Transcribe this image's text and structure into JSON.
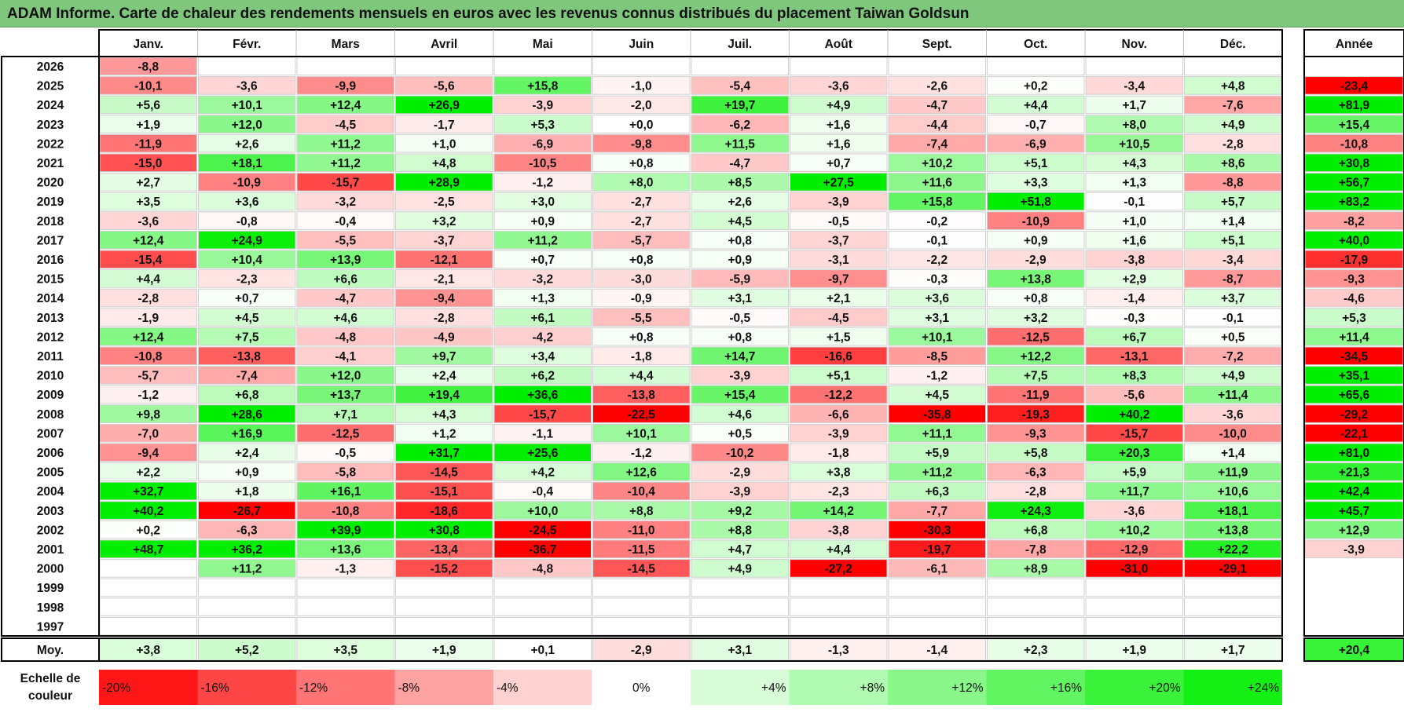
{
  "title": "ADAM Informe. Carte de chaleur des rendements mensuels en euros avec les revenus connus distribués du placement Taiwan Goldsun",
  "chart_data": {
    "type": "heatmap",
    "title": "ADAM Informe. Carte de chaleur des rendements mensuels en euros avec les revenus connus distribués du placement Taiwan Goldsun",
    "columns": [
      "Janv.",
      "Févr.",
      "Mars",
      "Avril",
      "Mai",
      "Juin",
      "Juil.",
      "Août",
      "Sept.",
      "Oct.",
      "Nov.",
      "Déc."
    ],
    "annual_label": "Année",
    "rows": [
      {
        "year": "2026",
        "values": [
          "-8,8",
          "",
          "",
          "",
          "",
          "",
          "",
          "",
          "",
          "",
          "",
          ""
        ],
        "annual": ""
      },
      {
        "year": "2025",
        "values": [
          "-10,1",
          "-3,6",
          "-9,9",
          "-5,6",
          "+15,8",
          "-1,0",
          "-5,4",
          "-3,6",
          "-2,6",
          "+0,2",
          "-3,4",
          "+4,8"
        ],
        "annual": "-23,4"
      },
      {
        "year": "2024",
        "values": [
          "+5,6",
          "+10,1",
          "+12,4",
          "+26,9",
          "-3,9",
          "-2,0",
          "+19,7",
          "+4,9",
          "-4,7",
          "+4,4",
          "+1,7",
          "-7,6"
        ],
        "annual": "+81,9"
      },
      {
        "year": "2023",
        "values": [
          "+1,9",
          "+12,0",
          "-4,5",
          "-1,7",
          "+5,3",
          "+0,0",
          "-6,2",
          "+1,6",
          "-4,4",
          "-0,7",
          "+8,0",
          "+4,9"
        ],
        "annual": "+15,4"
      },
      {
        "year": "2022",
        "values": [
          "-11,9",
          "+2,6",
          "+11,2",
          "+1,0",
          "-6,9",
          "-9,8",
          "+11,5",
          "+1,6",
          "-7,4",
          "-6,9",
          "+10,5",
          "-2,8"
        ],
        "annual": "-10,8"
      },
      {
        "year": "2021",
        "values": [
          "-15,0",
          "+18,1",
          "+11,2",
          "+4,8",
          "-10,5",
          "+0,8",
          "-4,7",
          "+0,7",
          "+10,2",
          "+5,1",
          "+4,3",
          "+8,6"
        ],
        "annual": "+30,8"
      },
      {
        "year": "2020",
        "values": [
          "+2,7",
          "-10,9",
          "-15,7",
          "+28,9",
          "-1,2",
          "+8,0",
          "+8,5",
          "+27,5",
          "+11,6",
          "+3,3",
          "+1,3",
          "-8,8"
        ],
        "annual": "+56,7"
      },
      {
        "year": "2019",
        "values": [
          "+3,5",
          "+3,6",
          "-3,2",
          "-2,5",
          "+3,0",
          "-2,7",
          "+2,6",
          "-3,9",
          "+15,8",
          "+51,8",
          "-0,1",
          "+5,7"
        ],
        "annual": "+83,2"
      },
      {
        "year": "2018",
        "values": [
          "-3,6",
          "-0,8",
          "-0,4",
          "+3,2",
          "+0,9",
          "-2,7",
          "+4,5",
          "-0,5",
          "-0,2",
          "-10,9",
          "+1,0",
          "+1,4"
        ],
        "annual": "-8,2"
      },
      {
        "year": "2017",
        "values": [
          "+12,4",
          "+24,9",
          "-5,5",
          "-3,7",
          "+11,2",
          "-5,7",
          "+0,8",
          "-3,7",
          "-0,1",
          "+0,9",
          "+1,6",
          "+5,1"
        ],
        "annual": "+40,0"
      },
      {
        "year": "2016",
        "values": [
          "-15,4",
          "+10,4",
          "+13,9",
          "-12,1",
          "+0,7",
          "+0,8",
          "+0,9",
          "-3,1",
          "-2,2",
          "-2,9",
          "-3,8",
          "-3,4"
        ],
        "annual": "-17,9"
      },
      {
        "year": "2015",
        "values": [
          "+4,4",
          "-2,3",
          "+6,6",
          "-2,1",
          "-3,2",
          "-3,0",
          "-5,9",
          "-9,7",
          "-0,3",
          "+13,8",
          "+2,9",
          "-8,7"
        ],
        "annual": "-9,3"
      },
      {
        "year": "2014",
        "values": [
          "-2,8",
          "+0,7",
          "-4,7",
          "-9,4",
          "+1,3",
          "-0,9",
          "+3,1",
          "+2,1",
          "+3,6",
          "+0,8",
          "-1,4",
          "+3,7"
        ],
        "annual": "-4,6"
      },
      {
        "year": "2013",
        "values": [
          "-1,9",
          "+4,5",
          "+4,6",
          "-2,8",
          "+6,1",
          "-5,5",
          "-0,5",
          "-4,5",
          "+3,1",
          "+3,2",
          "-0,3",
          "-0,1"
        ],
        "annual": "+5,3"
      },
      {
        "year": "2012",
        "values": [
          "+12,4",
          "+7,5",
          "-4,8",
          "-4,9",
          "-4,2",
          "+0,8",
          "+0,8",
          "+1,5",
          "+10,1",
          "-12,5",
          "+6,7",
          "+0,5"
        ],
        "annual": "+11,4"
      },
      {
        "year": "2011",
        "values": [
          "-10,8",
          "-13,8",
          "-4,1",
          "+9,7",
          "+3,4",
          "-1,8",
          "+14,7",
          "-16,6",
          "-8,5",
          "+12,2",
          "-13,1",
          "-7,2"
        ],
        "annual": "-34,5"
      },
      {
        "year": "2010",
        "values": [
          "-5,7",
          "-7,4",
          "+12,0",
          "+2,4",
          "+6,2",
          "+4,4",
          "-3,9",
          "+5,1",
          "-1,2",
          "+7,5",
          "+8,3",
          "+4,9"
        ],
        "annual": "+35,1"
      },
      {
        "year": "2009",
        "values": [
          "-1,2",
          "+6,8",
          "+13,7",
          "+19,4",
          "+36,6",
          "-13,8",
          "+15,4",
          "-12,2",
          "+4,5",
          "-11,9",
          "-5,6",
          "+11,4"
        ],
        "annual": "+65,6"
      },
      {
        "year": "2008",
        "values": [
          "+9,8",
          "+28,6",
          "+7,1",
          "+4,3",
          "-15,7",
          "-22,5",
          "+4,6",
          "-6,6",
          "-35,8",
          "-19,3",
          "+40,2",
          "-3,6"
        ],
        "annual": "-29,2"
      },
      {
        "year": "2007",
        "values": [
          "-7,0",
          "+16,9",
          "-12,5",
          "+1,2",
          "-1,1",
          "+10,1",
          "+0,5",
          "-3,9",
          "+11,1",
          "-9,3",
          "-15,7",
          "-10,0"
        ],
        "annual": "-22,1"
      },
      {
        "year": "2006",
        "values": [
          "-9,4",
          "+2,4",
          "-0,5",
          "+31,7",
          "+25,6",
          "-1,2",
          "-10,2",
          "-1,8",
          "+5,9",
          "+5,8",
          "+20,3",
          "+1,4"
        ],
        "annual": "+81,0"
      },
      {
        "year": "2005",
        "values": [
          "+2,2",
          "+0,9",
          "-5,8",
          "-14,5",
          "+4,2",
          "+12,6",
          "-2,9",
          "+3,8",
          "+11,2",
          "-6,3",
          "+5,9",
          "+11,9"
        ],
        "annual": "+21,3"
      },
      {
        "year": "2004",
        "values": [
          "+32,7",
          "+1,8",
          "+16,1",
          "-15,1",
          "-0,4",
          "-10,4",
          "-3,9",
          "-2,3",
          "+6,3",
          "-2,8",
          "+11,7",
          "+10,6"
        ],
        "annual": "+42,4"
      },
      {
        "year": "2003",
        "values": [
          "+40,2",
          "-26,7",
          "-10,8",
          "-18,6",
          "+10,0",
          "+8,8",
          "+9,2",
          "+14,2",
          "-7,7",
          "+24,3",
          "-3,6",
          "+18,1"
        ],
        "annual": "+45,7"
      },
      {
        "year": "2002",
        "values": [
          "+0,2",
          "-6,3",
          "+39,9",
          "+30,8",
          "-24,5",
          "-11,0",
          "+8,8",
          "-3,8",
          "-30,3",
          "+6,8",
          "+10,2",
          "+13,8"
        ],
        "annual": "+12,9"
      },
      {
        "year": "2001",
        "values": [
          "+48,7",
          "+36,2",
          "+13,6",
          "-13,4",
          "-36,7",
          "-11,5",
          "+4,7",
          "+4,4",
          "-19,7",
          "-7,8",
          "-12,9",
          "+22,2"
        ],
        "annual": "-3,9"
      },
      {
        "year": "2000",
        "values": [
          "",
          "+11,2",
          "-1,3",
          "-15,2",
          "-4,8",
          "-14,5",
          "+4,9",
          "-27,2",
          "-6,1",
          "+8,9",
          "-31,0",
          "-29,1"
        ],
        "annual": ""
      },
      {
        "year": "1999",
        "values": [
          "",
          "",
          "",
          "",
          "",
          "",
          "",
          "",
          "",
          "",
          "",
          ""
        ],
        "annual": ""
      },
      {
        "year": "1998",
        "values": [
          "",
          "",
          "",
          "",
          "",
          "",
          "",
          "",
          "",
          "",
          "",
          ""
        ],
        "annual": ""
      },
      {
        "year": "1997",
        "values": [
          "",
          "",
          "",
          "",
          "",
          "",
          "",
          "",
          "",
          "",
          "",
          ""
        ],
        "annual": ""
      }
    ],
    "average": {
      "label": "Moy.",
      "values": [
        "+3,8",
        "+5,2",
        "+3,5",
        "+1,9",
        "+0,1",
        "-2,9",
        "+3,1",
        "-1,3",
        "-1,4",
        "+2,3",
        "+1,9",
        "+1,7"
      ],
      "annual": "+20,4"
    },
    "scale": {
      "label_line1": "Echelle de",
      "label_line2": "couleur",
      "steps": [
        "-20%",
        "-16%",
        "-12%",
        "-8%",
        "-4%",
        "0%",
        "+4%",
        "+8%",
        "+12%",
        "+16%",
        "+20%",
        "+24%"
      ],
      "values": [
        -20,
        -16,
        -12,
        -8,
        -4,
        0,
        4,
        8,
        12,
        16,
        20,
        24
      ]
    },
    "colors": {
      "strong_negative": "#ff0000",
      "neutral": "#ffffff",
      "strong_positive": "#00ee00",
      "title_background": "#80c77e"
    }
  }
}
